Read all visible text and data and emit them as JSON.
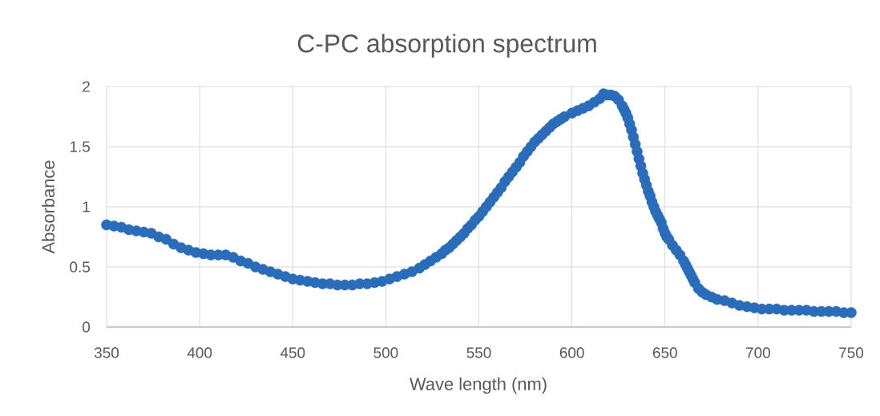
{
  "chart_data": {
    "type": "scatter",
    "title": "C-PC absorption spectrum",
    "xlabel": "Wave length (nm)",
    "ylabel": "Absorbance",
    "x": [
      350,
      354,
      358,
      362,
      366,
      370,
      374,
      378,
      382,
      386,
      390,
      394,
      398,
      402,
      406,
      410,
      414,
      418,
      422,
      426,
      430,
      434,
      438,
      442,
      446,
      450,
      454,
      458,
      462,
      466,
      470,
      474,
      478,
      482,
      486,
      490,
      494,
      498,
      502,
      506,
      510,
      514,
      518,
      521,
      524,
      527,
      530,
      532,
      534,
      536,
      538,
      540,
      542,
      544,
      546,
      548,
      550,
      552,
      554,
      556,
      558,
      560,
      562,
      564,
      566,
      568,
      570,
      572,
      574,
      576,
      578,
      580,
      582,
      584,
      586,
      588,
      590,
      592,
      594,
      596,
      600,
      603,
      606,
      609,
      612,
      615,
      617,
      619,
      621,
      623,
      625,
      627,
      628,
      629,
      630,
      631,
      632,
      633,
      634,
      635,
      636,
      637,
      638,
      639,
      640,
      641,
      642,
      643,
      644,
      645,
      646,
      647,
      648,
      649,
      650,
      651,
      652,
      654,
      656,
      658,
      660,
      661,
      662,
      663,
      664,
      665,
      666,
      668,
      670,
      672,
      675,
      678,
      682,
      686,
      690,
      694,
      698,
      702,
      706,
      710,
      714,
      718,
      722,
      726,
      730,
      734,
      738,
      742,
      746,
      750
    ],
    "values": [
      0.85,
      0.84,
      0.83,
      0.81,
      0.8,
      0.79,
      0.78,
      0.75,
      0.73,
      0.69,
      0.66,
      0.64,
      0.62,
      0.61,
      0.6,
      0.6,
      0.6,
      0.58,
      0.55,
      0.53,
      0.5,
      0.48,
      0.46,
      0.44,
      0.42,
      0.4,
      0.39,
      0.38,
      0.37,
      0.36,
      0.36,
      0.35,
      0.35,
      0.35,
      0.36,
      0.36,
      0.37,
      0.38,
      0.4,
      0.42,
      0.44,
      0.46,
      0.49,
      0.52,
      0.55,
      0.58,
      0.61,
      0.64,
      0.66,
      0.69,
      0.72,
      0.75,
      0.78,
      0.82,
      0.85,
      0.89,
      0.92,
      0.96,
      1.0,
      1.04,
      1.08,
      1.12,
      1.16,
      1.21,
      1.25,
      1.29,
      1.33,
      1.37,
      1.42,
      1.46,
      1.5,
      1.54,
      1.57,
      1.6,
      1.63,
      1.66,
      1.69,
      1.71,
      1.73,
      1.75,
      1.78,
      1.8,
      1.82,
      1.84,
      1.87,
      1.9,
      1.94,
      1.93,
      1.93,
      1.92,
      1.89,
      1.84,
      1.81,
      1.78,
      1.74,
      1.69,
      1.64,
      1.58,
      1.52,
      1.46,
      1.4,
      1.34,
      1.28,
      1.23,
      1.18,
      1.13,
      1.09,
      1.04,
      1.0,
      0.96,
      0.93,
      0.9,
      0.87,
      0.82,
      0.78,
      0.75,
      0.73,
      0.68,
      0.64,
      0.6,
      0.55,
      0.52,
      0.49,
      0.46,
      0.43,
      0.4,
      0.37,
      0.32,
      0.29,
      0.27,
      0.25,
      0.23,
      0.22,
      0.2,
      0.18,
      0.17,
      0.16,
      0.15,
      0.15,
      0.15,
      0.14,
      0.14,
      0.14,
      0.14,
      0.13,
      0.13,
      0.13,
      0.13,
      0.12,
      0.12
    ],
    "color": "#2a6cb9",
    "marker": "circle",
    "xlim": [
      350,
      750
    ],
    "ylim": [
      0,
      2
    ],
    "xticks": [
      350,
      400,
      450,
      500,
      550,
      600,
      650,
      700,
      750
    ],
    "yticks": [
      0,
      0.5,
      1,
      1.5,
      2
    ],
    "grid": true
  }
}
